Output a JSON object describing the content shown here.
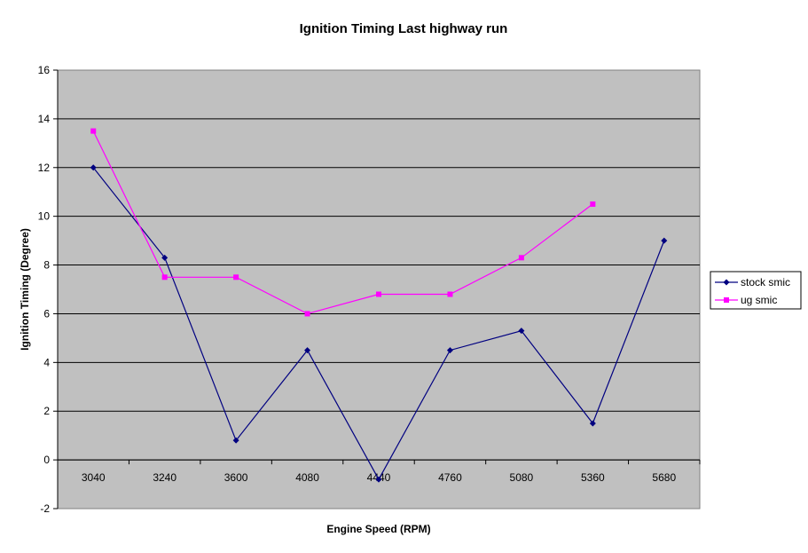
{
  "chart_data": {
    "type": "line",
    "title": "Ignition Timing Last highway run",
    "xlabel": "Engine Speed (RPM)",
    "ylabel": "Ignition Timing (Degree)",
    "categories": [
      "3040",
      "3240",
      "3600",
      "4080",
      "4440",
      "4760",
      "5080",
      "5360",
      "5680"
    ],
    "ylim": [
      -2,
      16
    ],
    "yticks": [
      -2,
      0,
      2,
      4,
      6,
      8,
      10,
      12,
      14,
      16
    ],
    "grid": true,
    "legend_position": "right",
    "plot_background": "#c0c0c0",
    "series": [
      {
        "name": "stock smic",
        "color": "#000080",
        "marker": "diamond",
        "values": [
          12,
          8.3,
          0.8,
          4.5,
          -0.8,
          4.5,
          5.3,
          1.5,
          9
        ]
      },
      {
        "name": "ug smic",
        "color": "#ff00ff",
        "marker": "square",
        "values": [
          13.5,
          7.5,
          7.5,
          6,
          6.8,
          6.8,
          8.3,
          10.5,
          null
        ]
      }
    ]
  }
}
